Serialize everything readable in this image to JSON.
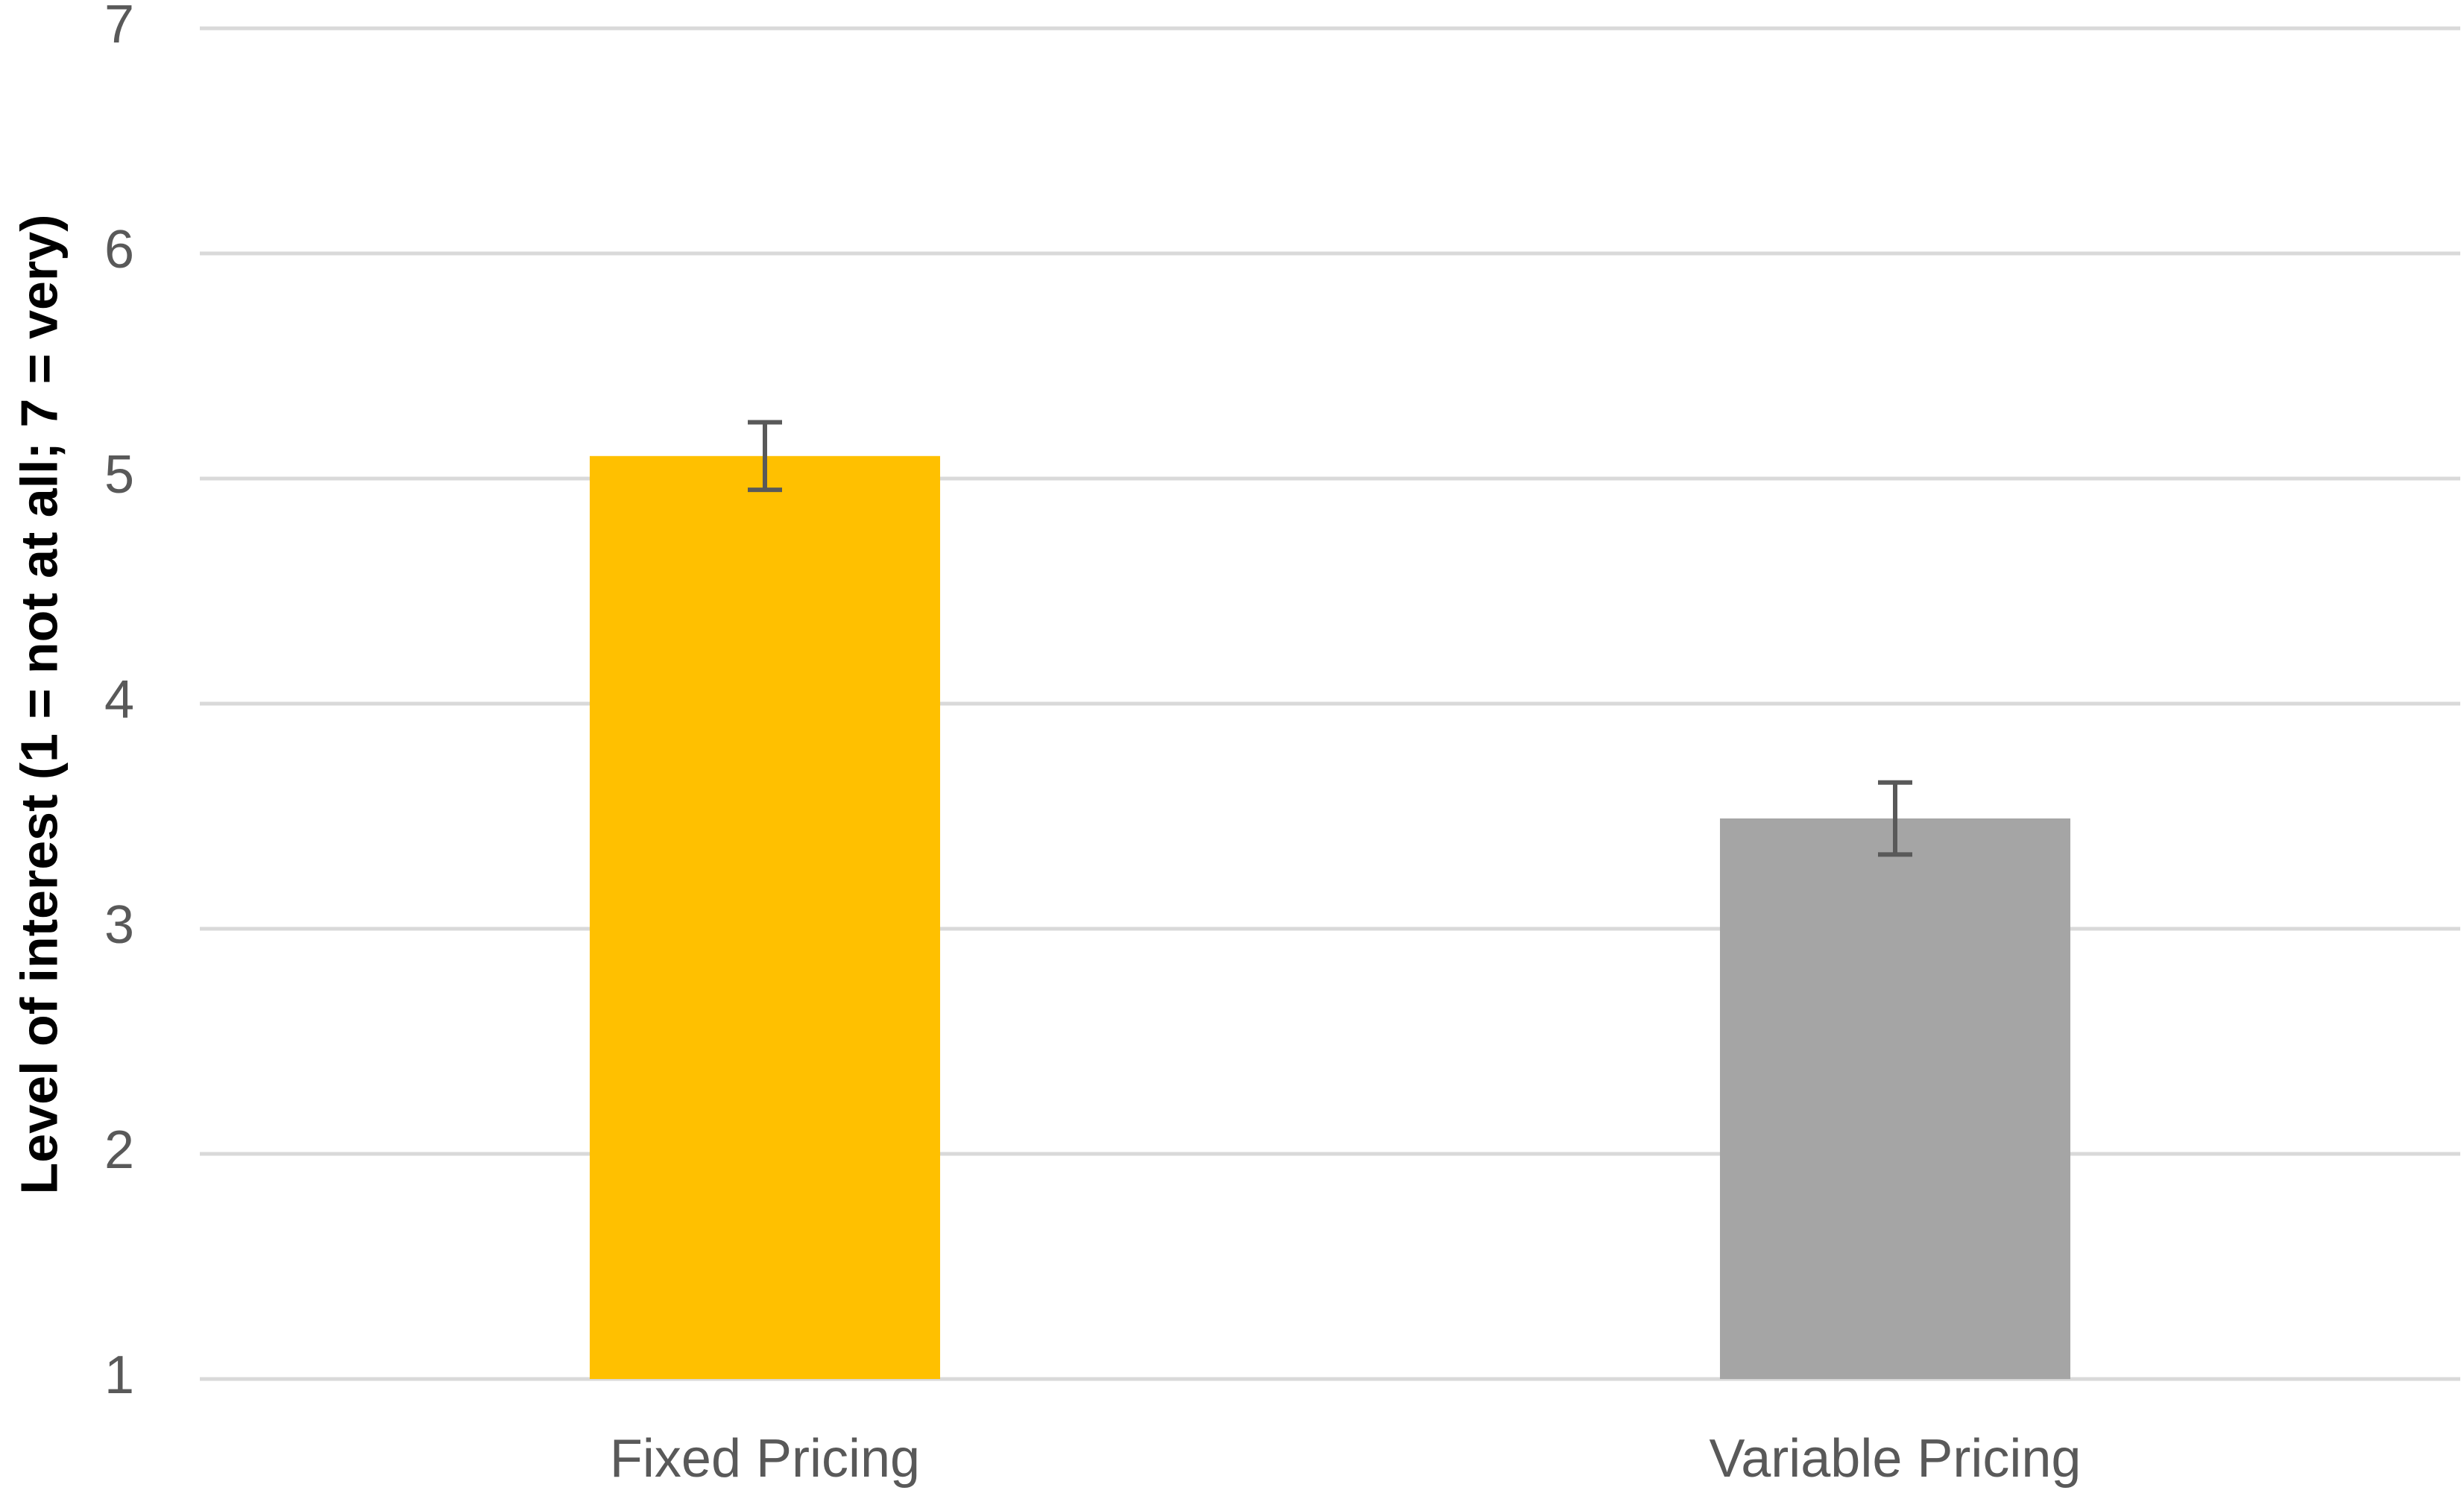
{
  "chart_data": {
    "type": "bar",
    "y_label": "Level of interest (1 = not at all; 7 = very)",
    "categories": [
      "Fixed Pricing",
      "Variable Pricing"
    ],
    "values": [
      5.1,
      3.49
    ],
    "errors": [
      0.15,
      0.16
    ],
    "colors": [
      "#FFC000",
      "#A5A5A5"
    ],
    "ylim": [
      1,
      7
    ],
    "yticks": [
      1,
      2,
      3,
      4,
      5,
      6,
      7
    ],
    "grid": true
  }
}
